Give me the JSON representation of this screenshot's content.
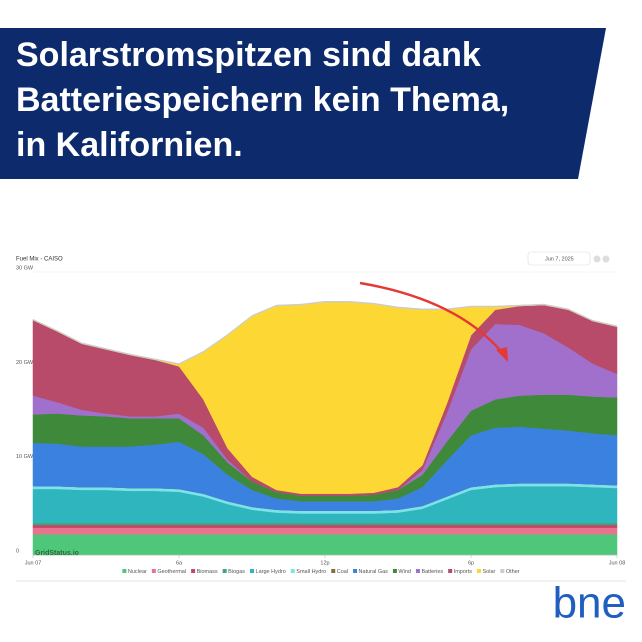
{
  "header": {
    "title_lines": [
      "Solarstromspitzen sind dank",
      "Batteriespeichern kein Thema,",
      "in Kalifornien."
    ]
  },
  "chart_data": {
    "type": "stacked_area",
    "title": "Fuel Mix - CAISO",
    "date_picker": "Jun 7, 2025",
    "watermark": "GridStatus.io",
    "x": [
      0,
      1,
      2,
      3,
      4,
      5,
      6,
      7,
      8,
      9,
      10,
      11,
      12,
      13,
      14,
      15,
      16,
      17,
      18,
      19,
      20,
      21,
      22,
      23,
      24
    ],
    "xlim": [
      0,
      24
    ],
    "xticks": [
      {
        "value": 0,
        "label": "Jun 07"
      },
      {
        "value": 6,
        "label": "6a"
      },
      {
        "value": 12,
        "label": "12p"
      },
      {
        "value": 18,
        "label": "6p"
      },
      {
        "value": 24,
        "label": "Jun 08"
      }
    ],
    "ylim": [
      0,
      30
    ],
    "yticks": [
      0,
      {
        "value": 10,
        "label": "10 GW"
      },
      {
        "value": 20,
        "label": "20 GW"
      },
      {
        "value": 30,
        "label": "30 GW"
      }
    ],
    "grid": true,
    "series": [
      {
        "name": "Nuclear",
        "color": "#4fc77a",
        "values": [
          2.2,
          2.2,
          2.2,
          2.2,
          2.2,
          2.2,
          2.2,
          2.2,
          2.2,
          2.2,
          2.2,
          2.2,
          2.2,
          2.2,
          2.2,
          2.2,
          2.2,
          2.2,
          2.2,
          2.2,
          2.2,
          2.2,
          2.2,
          2.2,
          2.2
        ]
      },
      {
        "name": "Geothermal",
        "color": "#e8738f",
        "values": [
          0.7,
          0.7,
          0.7,
          0.7,
          0.7,
          0.7,
          0.7,
          0.7,
          0.7,
          0.7,
          0.7,
          0.7,
          0.7,
          0.7,
          0.7,
          0.7,
          0.7,
          0.7,
          0.7,
          0.7,
          0.7,
          0.7,
          0.7,
          0.7,
          0.7
        ]
      },
      {
        "name": "Biomass",
        "color": "#c9466a",
        "values": [
          0.3,
          0.3,
          0.3,
          0.3,
          0.3,
          0.3,
          0.3,
          0.3,
          0.3,
          0.3,
          0.3,
          0.3,
          0.3,
          0.3,
          0.3,
          0.3,
          0.3,
          0.3,
          0.3,
          0.3,
          0.3,
          0.3,
          0.3,
          0.3,
          0.3
        ]
      },
      {
        "name": "Biogas",
        "color": "#3aa87a",
        "values": [
          0.2,
          0.2,
          0.2,
          0.2,
          0.2,
          0.2,
          0.2,
          0.2,
          0.2,
          0.2,
          0.2,
          0.2,
          0.2,
          0.2,
          0.2,
          0.2,
          0.2,
          0.2,
          0.2,
          0.2,
          0.2,
          0.2,
          0.2,
          0.2,
          0.2
        ]
      },
      {
        "name": "Large Hydro",
        "color": "#2fb5bd",
        "values": [
          3.6,
          3.6,
          3.5,
          3.5,
          3.4,
          3.4,
          3.3,
          2.8,
          2.0,
          1.4,
          1.1,
          1.0,
          1.0,
          1.0,
          1.0,
          1.1,
          1.5,
          2.5,
          3.5,
          3.8,
          3.9,
          3.9,
          3.9,
          3.8,
          3.7
        ]
      },
      {
        "name": "Small Hydro",
        "color": "#7de3ea",
        "values": [
          0.3,
          0.3,
          0.3,
          0.3,
          0.3,
          0.3,
          0.3,
          0.3,
          0.3,
          0.3,
          0.3,
          0.3,
          0.3,
          0.3,
          0.3,
          0.3,
          0.3,
          0.3,
          0.3,
          0.3,
          0.3,
          0.3,
          0.3,
          0.3,
          0.3
        ]
      },
      {
        "name": "Coal",
        "color": "#8b6a3e",
        "values": [
          0,
          0,
          0,
          0,
          0,
          0,
          0,
          0,
          0,
          0,
          0,
          0,
          0,
          0,
          0,
          0,
          0,
          0,
          0,
          0,
          0,
          0,
          0,
          0,
          0
        ]
      },
      {
        "name": "Natural Gas",
        "color": "#3b82e0",
        "values": [
          4.6,
          4.5,
          4.3,
          4.3,
          4.4,
          4.6,
          5.0,
          4.2,
          2.8,
          1.8,
          1.2,
          1.0,
          1.0,
          1.0,
          1.0,
          1.2,
          2.0,
          3.8,
          5.5,
          6.0,
          6.0,
          5.8,
          5.6,
          5.4,
          5.3
        ]
      },
      {
        "name": "Wind",
        "color": "#3f8a3a",
        "values": [
          3.0,
          3.2,
          3.3,
          3.2,
          3.0,
          2.8,
          2.5,
          2.0,
          1.3,
          0.9,
          0.7,
          0.6,
          0.6,
          0.6,
          0.7,
          0.9,
          1.3,
          2.0,
          2.6,
          3.0,
          3.3,
          3.6,
          3.8,
          3.9,
          4.0
        ]
      },
      {
        "name": "Batteries",
        "color": "#a070cc",
        "values": [
          2.0,
          1.2,
          0.6,
          0.3,
          0.2,
          0.2,
          0.5,
          0.8,
          0.3,
          0,
          0,
          0,
          0,
          0,
          0,
          0,
          0.5,
          3.0,
          6.5,
          8.0,
          7.5,
          6.5,
          5.0,
          3.5,
          2.5
        ]
      },
      {
        "name": "Imports",
        "color": "#b84a6a",
        "values": [
          8.0,
          7.5,
          7.0,
          6.8,
          6.5,
          6.0,
          5.0,
          3.0,
          1.2,
          0.5,
          0.2,
          0.2,
          0.2,
          0.2,
          0.2,
          0.3,
          0.5,
          1.0,
          1.5,
          1.5,
          2.0,
          3.0,
          4.0,
          4.5,
          5.0
        ]
      },
      {
        "name": "Solar",
        "color": "#fdd835",
        "values": [
          0,
          0,
          0,
          0,
          0,
          0,
          0.2,
          5,
          12,
          17,
          19.5,
          20,
          20.3,
          20.3,
          20,
          19,
          16.5,
          10,
          3,
          0.3,
          0,
          0,
          0,
          0,
          0
        ]
      },
      {
        "name": "Other",
        "color": "#cccccc",
        "values": [
          0.1,
          0.1,
          0.1,
          0.1,
          0.1,
          0.1,
          0.1,
          0.1,
          0.1,
          0.1,
          0.1,
          0.1,
          0.1,
          0.1,
          0.1,
          0.1,
          0.1,
          0.1,
          0.1,
          0.1,
          0.1,
          0.1,
          0.1,
          0.1,
          0.1
        ]
      }
    ]
  },
  "footer": {
    "logo": "bne"
  }
}
